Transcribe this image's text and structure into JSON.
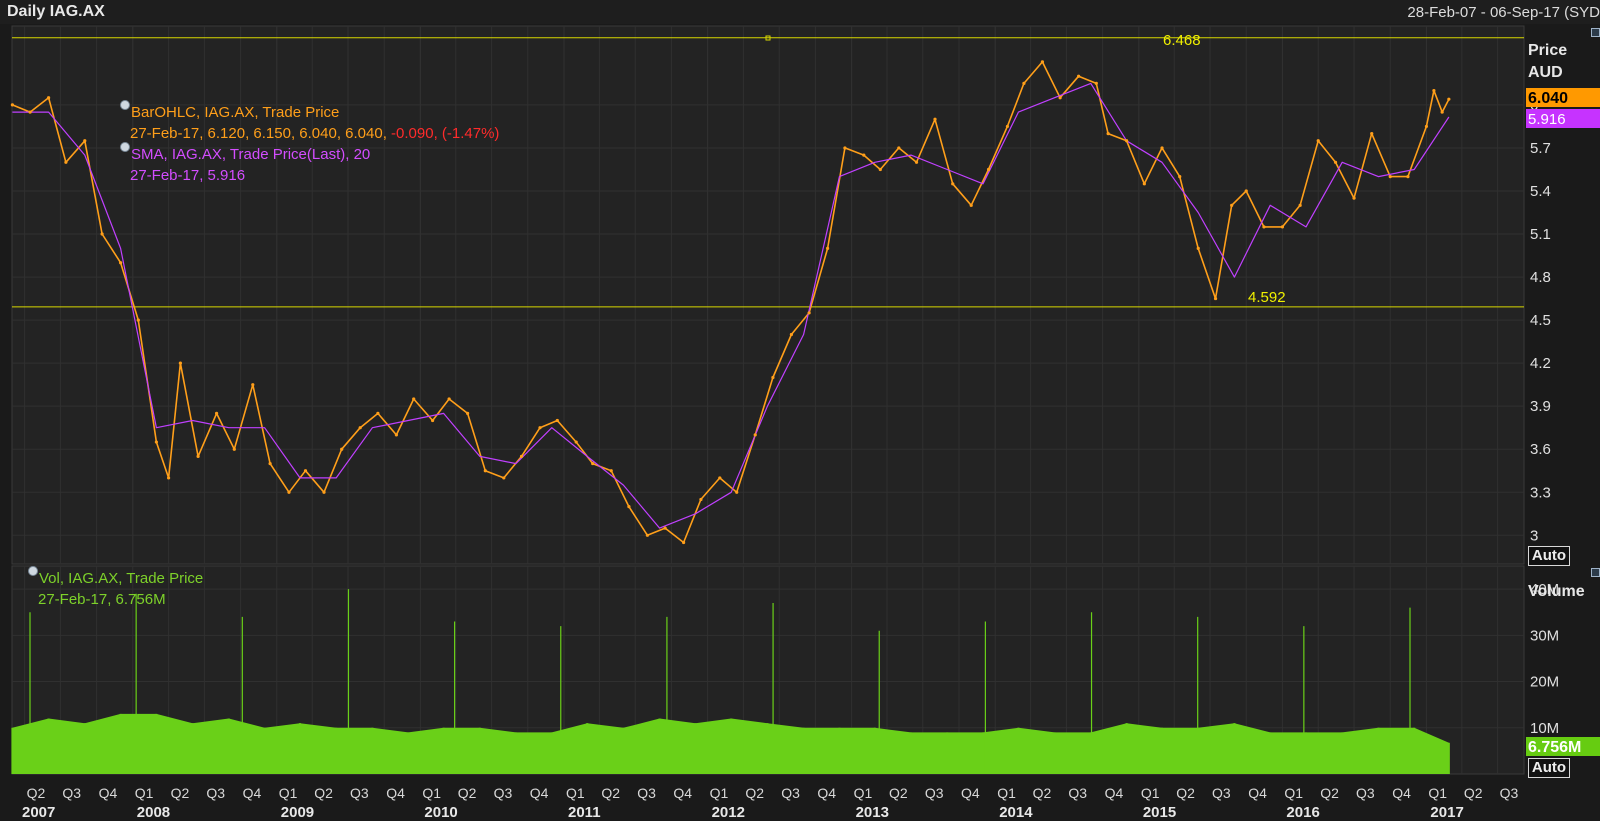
{
  "header": {
    "title": "Daily IAG.AX",
    "date_range": "28-Feb-07 - 06-Sep-17 (SYD"
  },
  "price_panel": {
    "axis_title": "Price",
    "axis_unit": "AUD",
    "last_price_tag": "6.040",
    "sma_tag": "5.916",
    "auto_button": "Auto",
    "ohlc_legend": {
      "name": "BarOHLC, IAG.AX, Trade Price",
      "values": "27-Feb-17, 6.120, 6.150, 6.040, 6.040,",
      "change": "-0.090, (-1.47%)"
    },
    "sma_legend": {
      "name": "SMA, IAG.AX, Trade Price(Last),  20",
      "values": "27-Feb-17, 5.916"
    },
    "high_marker": "6.468",
    "low_marker": "4.592"
  },
  "volume_panel": {
    "axis_title": "Volume",
    "last_volume_tag": "6.756M",
    "auto_button": "Auto",
    "legend": {
      "name": "Vol, IAG.AX, Trade Price",
      "values": "27-Feb-17, 6.756M"
    }
  },
  "colors": {
    "background": "#1a1a1a",
    "price_series": "#ff9f1a",
    "sma_series": "#c040ff",
    "volume_series": "#6ad018",
    "marker_lines": "#d8d800",
    "negative_change": "#ff2b2b"
  },
  "chart_data": [
    {
      "type": "line",
      "series": [
        {
          "name": "BarOHLC, IAG.AX, Trade Price",
          "x": [
            "2007-03-01",
            "2007-04-15",
            "2007-06-01",
            "2007-07-15",
            "2007-09-01",
            "2007-10-15",
            "2007-12-01",
            "2008-01-15",
            "2008-03-01",
            "2008-04-01",
            "2008-05-01",
            "2008-06-15",
            "2008-08-01",
            "2008-09-15",
            "2008-11-01",
            "2008-12-15",
            "2009-02-01",
            "2009-03-15",
            "2009-05-01",
            "2009-06-15",
            "2009-08-01",
            "2009-09-15",
            "2009-11-01",
            "2009-12-15",
            "2010-02-01",
            "2010-03-15",
            "2010-05-01",
            "2010-06-15",
            "2010-08-01",
            "2010-09-15",
            "2010-11-01",
            "2010-12-15",
            "2011-02-01",
            "2011-03-15",
            "2011-05-01",
            "2011-06-15",
            "2011-08-01",
            "2011-09-15",
            "2011-11-01",
            "2011-12-15",
            "2012-02-01",
            "2012-03-15",
            "2012-05-01",
            "2012-06-15",
            "2012-08-01",
            "2012-09-15",
            "2012-11-01",
            "2012-12-15",
            "2013-02-01",
            "2013-03-15",
            "2013-05-01",
            "2013-06-15",
            "2013-08-01",
            "2013-09-15",
            "2013-11-01",
            "2013-12-15",
            "2014-02-01",
            "2014-03-15",
            "2014-05-01",
            "2014-06-15",
            "2014-08-01",
            "2014-09-15",
            "2014-10-15",
            "2014-12-01",
            "2015-01-15",
            "2015-03-01",
            "2015-04-15",
            "2015-06-01",
            "2015-07-15",
            "2015-08-25",
            "2015-10-01",
            "2015-11-15",
            "2016-01-01",
            "2016-02-15",
            "2016-04-01",
            "2016-05-15",
            "2016-07-01",
            "2016-08-15",
            "2016-10-01",
            "2016-11-15",
            "2017-01-01",
            "2017-01-20",
            "2017-02-10",
            "2017-02-27"
          ],
          "values": [
            6.0,
            5.95,
            6.05,
            5.6,
            5.75,
            5.1,
            4.9,
            4.5,
            3.65,
            3.4,
            4.2,
            3.55,
            3.85,
            3.6,
            4.05,
            3.5,
            3.3,
            3.45,
            3.3,
            3.6,
            3.75,
            3.85,
            3.7,
            3.95,
            3.8,
            3.95,
            3.85,
            3.45,
            3.4,
            3.55,
            3.75,
            3.8,
            3.65,
            3.5,
            3.45,
            3.2,
            3.0,
            3.05,
            2.95,
            3.25,
            3.4,
            3.3,
            3.7,
            4.1,
            4.4,
            4.55,
            5.0,
            5.7,
            5.65,
            5.55,
            5.7,
            5.6,
            5.9,
            5.45,
            5.3,
            5.55,
            5.85,
            6.15,
            6.3,
            6.05,
            6.2,
            6.15,
            5.8,
            5.75,
            5.45,
            5.7,
            5.5,
            5.0,
            4.65,
            5.3,
            5.4,
            5.15,
            5.15,
            5.3,
            5.75,
            5.6,
            5.35,
            5.8,
            5.5,
            5.5,
            5.85,
            6.1,
            5.95,
            6.04
          ]
        },
        {
          "name": "SMA, IAG.AX, Trade Price(Last),  20",
          "x": [
            "2007-03-01",
            "2007-06-01",
            "2007-09-01",
            "2007-12-01",
            "2008-03-01",
            "2008-06-01",
            "2008-09-01",
            "2008-12-01",
            "2009-03-01",
            "2009-06-01",
            "2009-09-01",
            "2009-12-01",
            "2010-03-01",
            "2010-06-01",
            "2010-09-01",
            "2010-12-01",
            "2011-03-01",
            "2011-06-01",
            "2011-09-01",
            "2011-12-01",
            "2012-03-01",
            "2012-06-01",
            "2012-09-01",
            "2012-12-01",
            "2013-03-01",
            "2013-06-01",
            "2013-09-01",
            "2013-12-01",
            "2014-03-01",
            "2014-06-01",
            "2014-09-01",
            "2014-12-01",
            "2015-03-01",
            "2015-06-01",
            "2015-09-01",
            "2015-12-01",
            "2016-03-01",
            "2016-06-01",
            "2016-09-01",
            "2016-12-01",
            "2017-02-27"
          ],
          "values": [
            5.95,
            5.95,
            5.65,
            5.0,
            3.75,
            3.8,
            3.75,
            3.75,
            3.4,
            3.4,
            3.75,
            3.8,
            3.85,
            3.55,
            3.5,
            3.75,
            3.55,
            3.35,
            3.05,
            3.15,
            3.3,
            3.9,
            4.4,
            5.5,
            5.6,
            5.65,
            5.55,
            5.45,
            5.95,
            6.05,
            6.15,
            5.75,
            5.6,
            5.25,
            4.8,
            5.3,
            5.15,
            5.6,
            5.5,
            5.55,
            5.916
          ]
        }
      ],
      "yticks": [
        3,
        3.3,
        3.6,
        3.9,
        4.2,
        4.5,
        4.8,
        5.1,
        5.4,
        5.7,
        6
      ],
      "ylim": [
        2.8,
        6.55
      ],
      "xlim": [
        "2007-02-28",
        "2017-09-06"
      ],
      "horizontal_lines": [
        6.468,
        4.592
      ],
      "ylabel": "Price",
      "unit": "AUD"
    },
    {
      "type": "bar",
      "series": [
        {
          "name": "Vol, IAG.AX, Trade Price",
          "x": [
            "2007-03-01",
            "2007-06-01",
            "2007-09-01",
            "2007-12-01",
            "2008-03-01",
            "2008-06-01",
            "2008-09-01",
            "2008-12-01",
            "2009-03-01",
            "2009-06-01",
            "2009-09-01",
            "2009-12-01",
            "2010-03-01",
            "2010-06-01",
            "2010-09-01",
            "2010-12-01",
            "2011-03-01",
            "2011-06-01",
            "2011-09-01",
            "2011-12-01",
            "2012-03-01",
            "2012-06-01",
            "2012-09-01",
            "2012-12-01",
            "2013-03-01",
            "2013-06-01",
            "2013-09-01",
            "2013-12-01",
            "2014-03-01",
            "2014-06-01",
            "2014-09-01",
            "2014-12-01",
            "2015-03-01",
            "2015-06-01",
            "2015-09-01",
            "2015-12-01",
            "2016-03-01",
            "2016-06-01",
            "2016-09-01",
            "2016-12-01",
            "2017-02-27"
          ],
          "values": [
            10,
            12,
            11,
            13,
            13,
            11,
            12,
            10,
            11,
            10,
            10,
            9,
            10,
            10,
            9,
            9,
            11,
            10,
            12,
            11,
            12,
            11,
            10,
            10,
            10,
            9,
            9,
            9,
            10,
            9,
            9,
            11,
            10,
            10,
            11,
            9,
            9,
            9,
            10,
            10,
            6.756
          ],
          "peaks": [
            35,
            39,
            34,
            40,
            33,
            32,
            34,
            37,
            31,
            33,
            35,
            34,
            32,
            36
          ]
        }
      ],
      "yticks": [
        10,
        20,
        30,
        40
      ],
      "ylim": [
        0,
        45
      ],
      "ylabel": "Volume",
      "unit": "M"
    }
  ],
  "x_axis": {
    "quarters": [
      "Q2",
      "Q3",
      "Q4",
      "Q1",
      "Q2",
      "Q3",
      "Q4",
      "Q1",
      "Q2",
      "Q3",
      "Q4",
      "Q1",
      "Q2",
      "Q3",
      "Q4",
      "Q1",
      "Q2",
      "Q3",
      "Q4",
      "Q1",
      "Q2",
      "Q3",
      "Q4",
      "Q1",
      "Q2",
      "Q3",
      "Q4",
      "Q1",
      "Q2",
      "Q3",
      "Q4",
      "Q1",
      "Q2",
      "Q3",
      "Q4",
      "Q1",
      "Q2",
      "Q3",
      "Q4",
      "Q1",
      "Q2",
      "Q3"
    ],
    "years": [
      "2007",
      "2008",
      "2009",
      "2010",
      "2011",
      "2012",
      "2013",
      "2014",
      "2015",
      "2016",
      "2017"
    ]
  }
}
